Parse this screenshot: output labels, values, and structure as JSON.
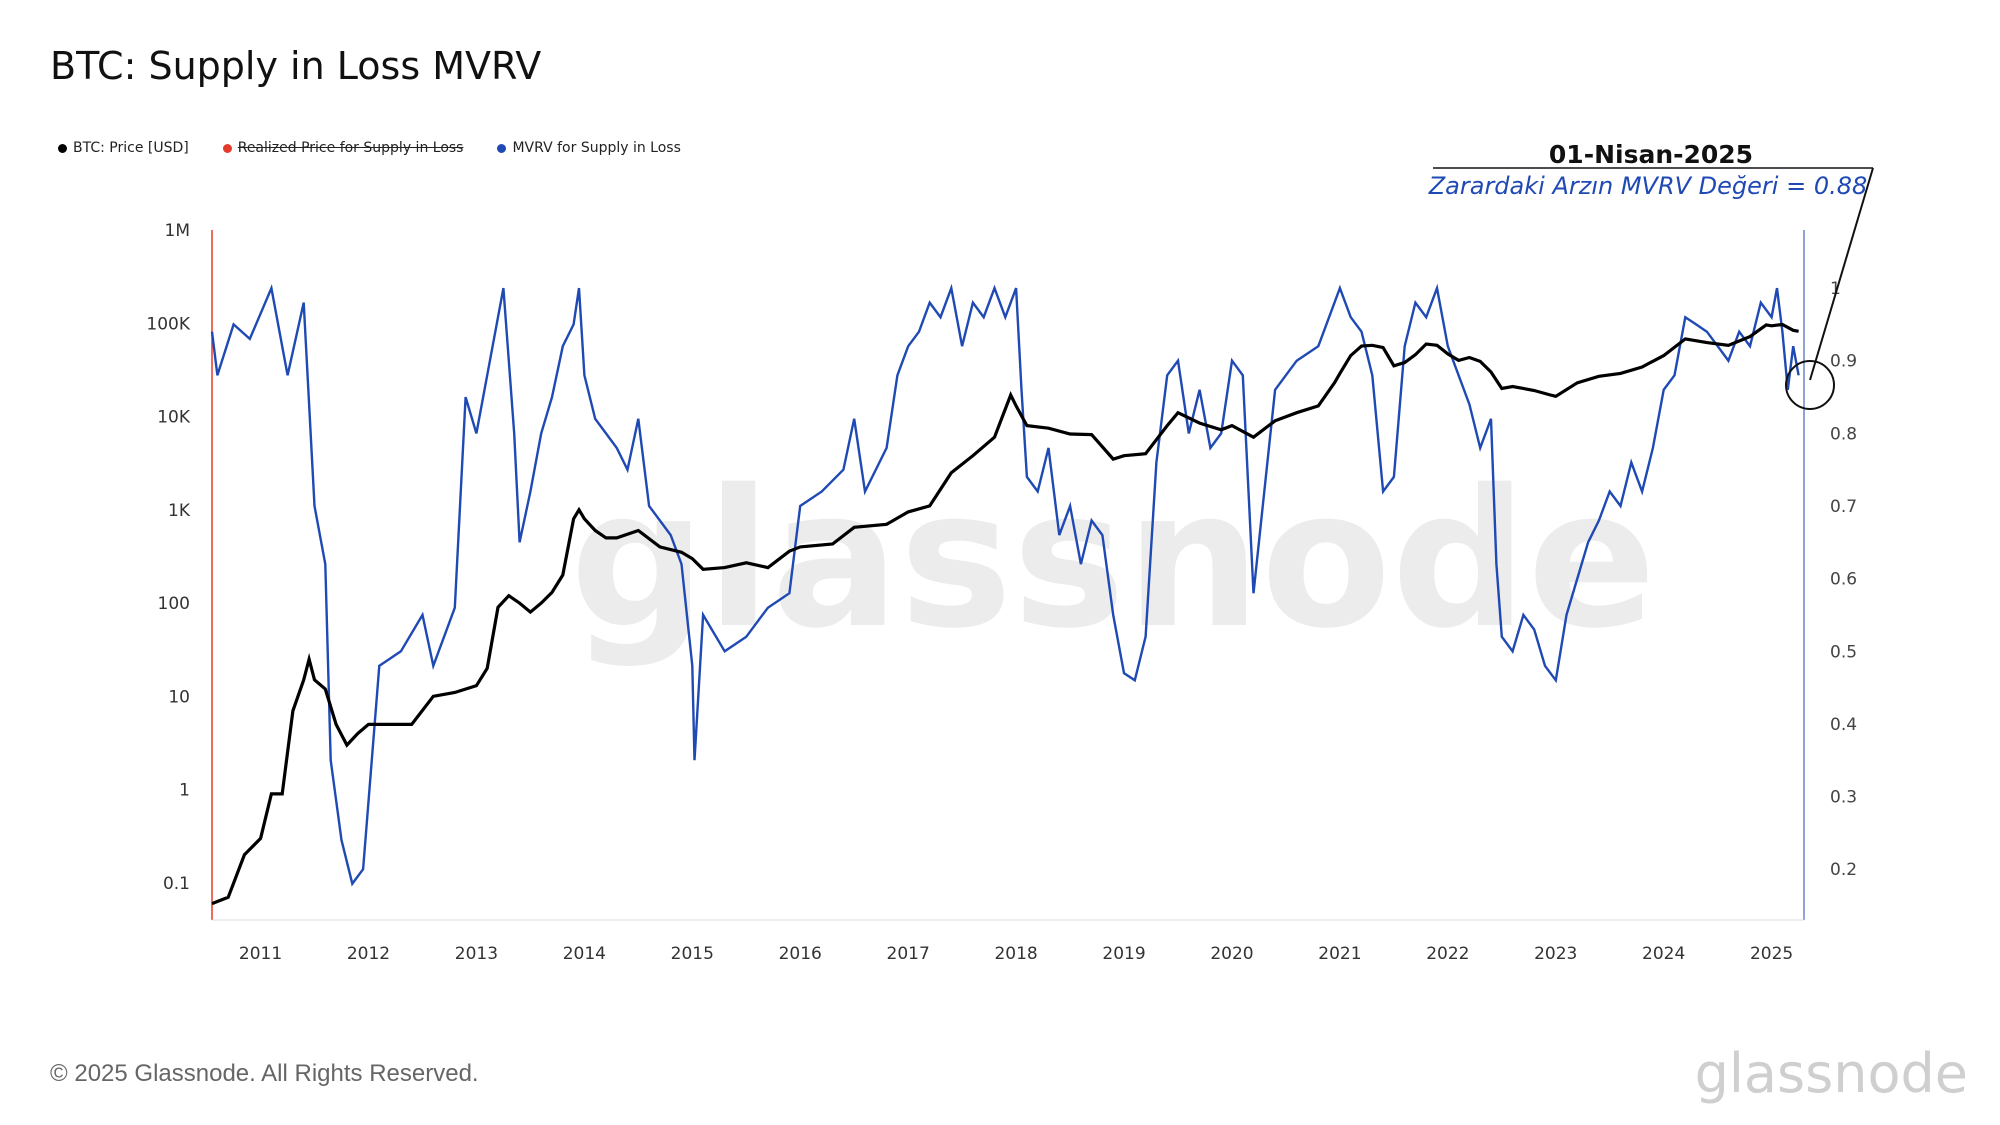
{
  "title": "BTC: Supply in Loss MVRV",
  "legend": [
    {
      "label": "BTC: Price [USD]",
      "color": "#000000",
      "struck": false
    },
    {
      "label": "Realized Price for Supply in Loss",
      "color": "#e53b2b",
      "struck": true
    },
    {
      "label": "MVRV for Supply in Loss",
      "color": "#1f49b3",
      "struck": false
    }
  ],
  "annotation": {
    "date": "01-Nisan-2025",
    "value_text": "Zarardaki Arzın MVRV Değeri = 0.88"
  },
  "footer": "© 2025 Glassnode. All Rights Reserved.",
  "brand": "glassnode",
  "watermark": "glassnode",
  "chart_data": {
    "type": "line",
    "title": "BTC: Supply in Loss MVRV",
    "x_ticks": [
      "2011",
      "2012",
      "2013",
      "2014",
      "2015",
      "2016",
      "2017",
      "2018",
      "2019",
      "2020",
      "2021",
      "2022",
      "2023",
      "2024",
      "2025"
    ],
    "y_left": {
      "scale": "log",
      "ticks": [
        "0.1",
        "1",
        "10",
        "100",
        "1K",
        "10K",
        "100K",
        "1M"
      ],
      "range": [
        0.04,
        1000000
      ]
    },
    "y_right": {
      "scale": "linear",
      "ticks": [
        "0.2",
        "0.3",
        "0.4",
        "0.5",
        "0.6",
        "0.7",
        "0.8",
        "0.9",
        "1"
      ],
      "range": [
        0.13,
        1.08
      ]
    },
    "x_range": [
      2010.55,
      2025.3
    ],
    "series": [
      {
        "name": "BTC: Price [USD]",
        "axis": "left",
        "color": "#000000",
        "x": [
          2010.55,
          2010.7,
          2010.85,
          2011.0,
          2011.1,
          2011.2,
          2011.3,
          2011.4,
          2011.45,
          2011.5,
          2011.6,
          2011.7,
          2011.8,
          2011.9,
          2012.0,
          2012.2,
          2012.4,
          2012.6,
          2012.8,
          2013.0,
          2013.1,
          2013.2,
          2013.3,
          2013.4,
          2013.5,
          2013.6,
          2013.7,
          2013.8,
          2013.9,
          2013.95,
          2014.0,
          2014.1,
          2014.2,
          2014.3,
          2014.5,
          2014.7,
          2014.9,
          2015.0,
          2015.1,
          2015.3,
          2015.5,
          2015.7,
          2015.9,
          2016.0,
          2016.3,
          2016.5,
          2016.8,
          2017.0,
          2017.2,
          2017.4,
          2017.6,
          2017.8,
          2017.95,
          2018.0,
          2018.1,
          2018.3,
          2018.5,
          2018.7,
          2018.9,
          2019.0,
          2019.2,
          2019.4,
          2019.5,
          2019.7,
          2019.9,
          2020.0,
          2020.2,
          2020.4,
          2020.6,
          2020.8,
          2020.95,
          2021.0,
          2021.1,
          2021.2,
          2021.3,
          2021.4,
          2021.5,
          2021.6,
          2021.7,
          2021.8,
          2021.9,
          2022.0,
          2022.1,
          2022.2,
          2022.3,
          2022.4,
          2022.5,
          2022.6,
          2022.8,
          2022.95,
          2023.0,
          2023.2,
          2023.4,
          2023.6,
          2023.8,
          2023.95,
          2024.0,
          2024.2,
          2024.4,
          2024.6,
          2024.8,
          2024.95,
          2025.0,
          2025.1,
          2025.2,
          2025.25
        ],
        "values": [
          0.06,
          0.07,
          0.2,
          0.3,
          0.9,
          0.9,
          7,
          15,
          25,
          15,
          12,
          5,
          3,
          4,
          5,
          5,
          5,
          10,
          11,
          13,
          20,
          90,
          120,
          100,
          80,
          100,
          130,
          200,
          800,
          1000,
          800,
          600,
          500,
          500,
          600,
          400,
          350,
          300,
          230,
          240,
          270,
          240,
          360,
          400,
          430,
          650,
          700,
          950,
          1100,
          2500,
          3800,
          6000,
          17000,
          13000,
          8000,
          7500,
          6500,
          6400,
          3500,
          3800,
          4000,
          8000,
          11000,
          8500,
          7200,
          8000,
          6000,
          9000,
          11000,
          13000,
          23000,
          29000,
          45000,
          57000,
          58000,
          55000,
          35000,
          38000,
          46000,
          60000,
          58000,
          47000,
          40000,
          43000,
          39000,
          30000,
          20000,
          21000,
          19000,
          17000,
          16500,
          23000,
          27000,
          29000,
          34000,
          42000,
          45000,
          68000,
          62000,
          58000,
          72000,
          96000,
          94000,
          97000,
          84000,
          82000
        ]
      },
      {
        "name": "MVRV for Supply in Loss",
        "axis": "right",
        "color": "#1f49b3",
        "x": [
          2010.55,
          2010.6,
          2010.75,
          2010.9,
          2011.1,
          2011.25,
          2011.4,
          2011.5,
          2011.6,
          2011.65,
          2011.75,
          2011.85,
          2011.95,
          2012.1,
          2012.3,
          2012.5,
          2012.6,
          2012.7,
          2012.8,
          2012.9,
          2013.0,
          2013.1,
          2013.2,
          2013.25,
          2013.3,
          2013.35,
          2013.4,
          2013.5,
          2013.6,
          2013.7,
          2013.8,
          2013.9,
          2013.95,
          2014.0,
          2014.1,
          2014.2,
          2014.3,
          2014.4,
          2014.5,
          2014.6,
          2014.7,
          2014.8,
          2014.9,
          2015.0,
          2015.02,
          2015.1,
          2015.3,
          2015.5,
          2015.7,
          2015.9,
          2016.0,
          2016.2,
          2016.4,
          2016.5,
          2016.6,
          2016.8,
          2016.9,
          2017.0,
          2017.1,
          2017.2,
          2017.3,
          2017.4,
          2017.5,
          2017.6,
          2017.7,
          2017.8,
          2017.9,
          2018.0,
          2018.05,
          2018.1,
          2018.2,
          2018.3,
          2018.4,
          2018.5,
          2018.6,
          2018.7,
          2018.8,
          2018.9,
          2019.0,
          2019.1,
          2019.2,
          2019.3,
          2019.4,
          2019.5,
          2019.6,
          2019.7,
          2019.8,
          2019.9,
          2020.0,
          2020.1,
          2020.2,
          2020.3,
          2020.4,
          2020.6,
          2020.8,
          2020.9,
          2021.0,
          2021.1,
          2021.2,
          2021.3,
          2021.4,
          2021.5,
          2021.6,
          2021.7,
          2021.8,
          2021.9,
          2022.0,
          2022.1,
          2022.2,
          2022.3,
          2022.4,
          2022.45,
          2022.5,
          2022.6,
          2022.7,
          2022.8,
          2022.9,
          2023.0,
          2023.1,
          2023.2,
          2023.3,
          2023.4,
          2023.5,
          2023.6,
          2023.7,
          2023.8,
          2023.9,
          2024.0,
          2024.1,
          2024.2,
          2024.3,
          2024.4,
          2024.5,
          2024.6,
          2024.7,
          2024.8,
          2024.9,
          2025.0,
          2025.05,
          2025.1,
          2025.15,
          2025.2,
          2025.25
        ],
        "values": [
          0.94,
          0.88,
          0.95,
          0.93,
          1.0,
          0.88,
          0.98,
          0.7,
          0.62,
          0.35,
          0.24,
          0.18,
          0.2,
          0.48,
          0.5,
          0.55,
          0.48,
          0.52,
          0.56,
          0.85,
          0.8,
          0.88,
          0.96,
          1.0,
          0.9,
          0.8,
          0.65,
          0.72,
          0.8,
          0.85,
          0.92,
          0.95,
          1.0,
          0.88,
          0.82,
          0.8,
          0.78,
          0.75,
          0.82,
          0.7,
          0.68,
          0.66,
          0.62,
          0.48,
          0.35,
          0.55,
          0.5,
          0.52,
          0.56,
          0.58,
          0.7,
          0.72,
          0.75,
          0.82,
          0.72,
          0.78,
          0.88,
          0.92,
          0.94,
          0.98,
          0.96,
          1.0,
          0.92,
          0.98,
          0.96,
          1.0,
          0.96,
          1.0,
          0.86,
          0.74,
          0.72,
          0.78,
          0.66,
          0.7,
          0.62,
          0.68,
          0.66,
          0.55,
          0.47,
          0.46,
          0.52,
          0.76,
          0.88,
          0.9,
          0.8,
          0.86,
          0.78,
          0.8,
          0.9,
          0.88,
          0.58,
          0.72,
          0.86,
          0.9,
          0.92,
          0.96,
          1.0,
          0.96,
          0.94,
          0.88,
          0.72,
          0.74,
          0.92,
          0.98,
          0.96,
          1.0,
          0.92,
          0.88,
          0.84,
          0.78,
          0.82,
          0.62,
          0.52,
          0.5,
          0.55,
          0.53,
          0.48,
          0.46,
          0.55,
          0.6,
          0.65,
          0.68,
          0.72,
          0.7,
          0.76,
          0.72,
          0.78,
          0.86,
          0.88,
          0.96,
          0.95,
          0.94,
          0.92,
          0.9,
          0.94,
          0.92,
          0.98,
          0.96,
          1.0,
          0.94,
          0.86,
          0.92,
          0.88
        ]
      }
    ]
  }
}
